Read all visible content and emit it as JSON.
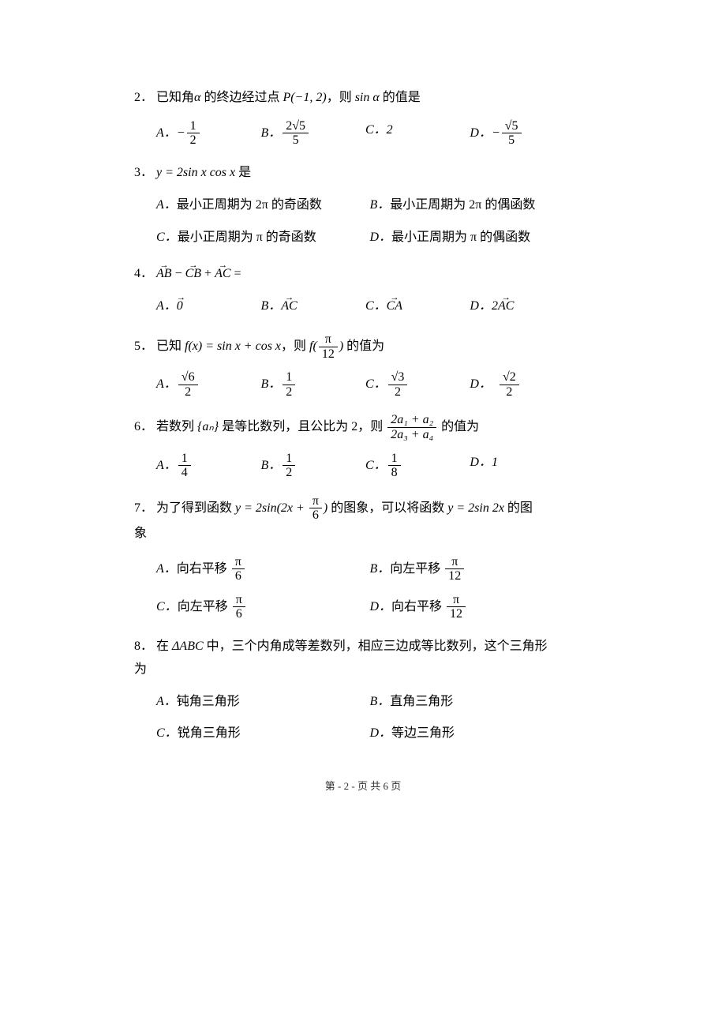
{
  "page": {
    "footer": "第 - 2 - 页 共 6 页"
  },
  "questions": [
    {
      "num": "2．",
      "text_prefix": "已知角",
      "text_var1": "α",
      "text_mid1": " 的终边经过点 ",
      "text_point": "P(−1, 2)",
      "text_mid2": "，则 ",
      "text_func": "sin α",
      "text_suffix": " 的值是",
      "optA_label": "A．",
      "optA_num": "1",
      "optA_den": "2",
      "optA_sign": "−",
      "optB_label": "B．",
      "optB_num": "2√5",
      "optB_den": "5",
      "optC_label": "C．",
      "optC_val": "2",
      "optD_label": "D．",
      "optD_sign": "−",
      "optD_num": "√5",
      "optD_den": "5"
    },
    {
      "num": "3．",
      "text_expr": "y = 2sin x cos x",
      "text_suffix": " 是",
      "optA_label": "A．",
      "optA_text": "最小正周期为 2π 的奇函数",
      "optB_label": "B．",
      "optB_text": "最小正周期为 2π 的偶函数",
      "optC_label": "C．",
      "optC_text": "最小正周期为 π 的奇函数",
      "optD_label": "D．",
      "optD_text": "最小正周期为 π 的偶函数"
    },
    {
      "num": "4．",
      "vec1": "AB",
      "op1": " − ",
      "vec2": "CB",
      "op2": " + ",
      "vec3": "AC",
      "eq": " =",
      "optA_label": "A．",
      "optA_vec": "0",
      "optB_label": "B．",
      "optB_vec": "AC",
      "optC_label": "C．",
      "optC_vec": "CA",
      "optD_label": "D．",
      "optD_pre": "2",
      "optD_vec": "AC"
    },
    {
      "num": "5．",
      "text_prefix": "已知 ",
      "text_fx": "f(x) = sin x + cos x",
      "text_mid": "，则 ",
      "text_f": "f(",
      "text_arg_num": "π",
      "text_arg_den": "12",
      "text_close": ")",
      "text_suffix": " 的值为",
      "optA_label": "A．",
      "optA_num": "√6",
      "optA_den": "2",
      "optB_label": "B．",
      "optB_num": "1",
      "optB_den": "2",
      "optC_label": "C．",
      "optC_num": "√3",
      "optC_den": "2",
      "optD_label": "D．",
      "optD_num": "√2",
      "optD_den": "2"
    },
    {
      "num": "6．",
      "text_prefix": "若数列 ",
      "text_seq": "{aₙ}",
      "text_mid1": " 是等比数列，且公比为 2，则 ",
      "frac_num": "2a₁ + a₂",
      "frac_den": "2a₃ + a₄",
      "text_suffix": " 的值为",
      "optA_label": "A．",
      "optA_num": "1",
      "optA_den": "4",
      "optB_label": "B．",
      "optB_num": "1",
      "optB_den": "2",
      "optC_label": "C．",
      "optC_num": "1",
      "optC_den": "8",
      "optD_label": "D．",
      "optD_val": "1"
    },
    {
      "num": "7．",
      "text_prefix": "为了得到函数 ",
      "text_y1": "y = 2sin(2x + ",
      "text_y1_num": "π",
      "text_y1_den": "6",
      "text_y1_close": ")",
      "text_mid": " 的图象，可以将函数 ",
      "text_y2": "y = 2sin 2x",
      "text_suffix": " 的图",
      "text_line2": "象",
      "optA_label": "A．",
      "optA_text": "向右平移 ",
      "optA_num": "π",
      "optA_den": "6",
      "optB_label": "B．",
      "optB_text": "向左平移 ",
      "optB_num": "π",
      "optB_den": "12",
      "optC_label": "C．",
      "optC_text": "向左平移 ",
      "optC_num": "π",
      "optC_den": "6",
      "optD_label": "D．",
      "optD_text": "向右平移 ",
      "optD_num": "π",
      "optD_den": "12"
    },
    {
      "num": "8．",
      "text_prefix": "在 ",
      "text_tri": "ΔABC",
      "text_mid": " 中，三个内角成等差数列，相应三边成等比数列，这个三角形",
      "text_line2": "为",
      "optA_label": "A．",
      "optA_text": "钝角三角形",
      "optB_label": "B．",
      "optB_text": "直角三角形",
      "optC_label": "C．",
      "optC_text": "锐角三角形",
      "optD_label": "D．",
      "optD_text": "等边三角形"
    }
  ]
}
